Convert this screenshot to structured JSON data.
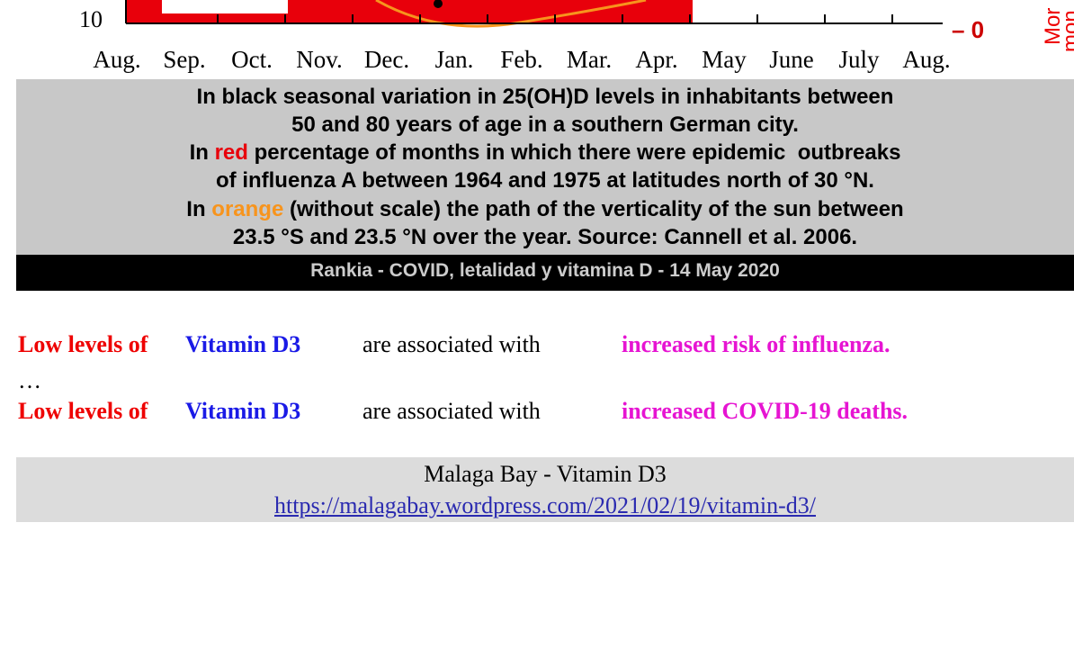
{
  "figure": {
    "y_label": "10",
    "right_label": "– 0",
    "side_labels": [
      "Mor",
      "mon"
    ],
    "months": [
      "Aug.",
      "Sep.",
      "Oct.",
      "Nov.",
      "Dec.",
      "Jan.",
      "Feb.",
      "Mar.",
      "Apr.",
      "May",
      "June",
      "July",
      "Aug."
    ]
  },
  "caption": {
    "line1": "In black seasonal variation in 25(OH)D levels in inhabitants between",
    "line2": "50 and 80 years of age in a southern German city.",
    "line3": [
      "In ",
      "red",
      " percentage of months in which there were epidemic  outbreaks"
    ],
    "line4": "of influenza A between 1964 and 1975 at latitudes north of 30 °N.",
    "line5": [
      "In ",
      "orange",
      " (without scale) the path of the verticality of the sun between"
    ],
    "line6": "23.5 °S and 23.5 °N over the year. Source: Cannell et al. 2006.",
    "credit": "Rankia - COVID, letalidad y vitamina D - 14 May 2020"
  },
  "statements": [
    {
      "a": "Low levels of",
      "b": "Vitamin D3",
      "c": "are associated with",
      "d": "increased risk of influenza."
    },
    {
      "a": "Low levels of",
      "b": "Vitamin D3",
      "c": "are associated with",
      "d": "increased COVID-19 deaths."
    }
  ],
  "ellipsis": "…",
  "source": {
    "title": "Malaga Bay - Vitamin D3",
    "link": "https://malagabay.wordpress.com/2021/02/19/vitamin-d3/"
  }
}
